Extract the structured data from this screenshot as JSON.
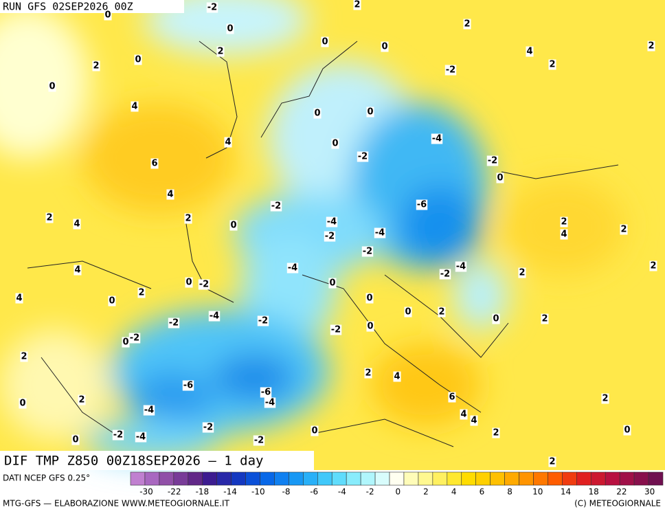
{
  "header": {
    "run": "RUN GFS 02SEP2026 00Z"
  },
  "map": {
    "title": "DIF TMP Z850 00Z18SEP2026 — 1 day",
    "labels": [
      -2,
      0,
      2,
      0,
      2,
      0,
      0,
      2,
      4,
      2,
      2,
      0,
      -2,
      2,
      0,
      4,
      0,
      0,
      4,
      -4,
      0,
      -2,
      6,
      -2,
      0,
      4,
      -6,
      -2,
      2,
      4,
      2,
      0,
      -4,
      2,
      2,
      4,
      -2,
      -4,
      -2,
      -4,
      -4,
      4,
      2,
      2,
      -2,
      0,
      -2,
      0,
      4,
      0,
      2,
      0,
      -4,
      -2,
      -2,
      0,
      2,
      0,
      2,
      0,
      -2,
      -2,
      0,
      2,
      2,
      4,
      -6,
      -6,
      -4,
      6,
      2,
      0,
      2,
      -4,
      4,
      4,
      -2,
      -2,
      -4,
      0,
      -2,
      2,
      0,
      0,
      2
    ]
  },
  "colorbar": {
    "source": "DATI NCEP GFS 0.25°",
    "colors": [
      "#c080d0",
      "#a868c0",
      "#9050a8",
      "#783c98",
      "#602888",
      "#3c1c90",
      "#2828a8",
      "#1438c0",
      "#0a50d8",
      "#0868e8",
      "#1080f0",
      "#1898f4",
      "#28b0f8",
      "#40c8fa",
      "#60dcfc",
      "#88ecfc",
      "#b0f6fc",
      "#d8fcfc",
      "#fffff0",
      "#fffcb8",
      "#fff890",
      "#fff060",
      "#ffe830",
      "#ffdc00",
      "#ffd000",
      "#ffc000",
      "#ffaa00",
      "#ff9400",
      "#ff7800",
      "#ff5c00",
      "#f03c10",
      "#e02020",
      "#cc1830",
      "#b81040",
      "#a01048",
      "#88104c",
      "#701050"
    ],
    "ticks": [
      -30,
      -22,
      -18,
      -14,
      -10,
      -8,
      -6,
      -4,
      -2,
      0,
      2,
      4,
      6,
      8,
      10,
      14,
      18,
      22,
      30
    ]
  },
  "footer": {
    "left": "MTG-GFS — ELABORAZIONE WWW.METEOGIORNALE.IT",
    "right": "(C) METEOGIORNALE"
  }
}
